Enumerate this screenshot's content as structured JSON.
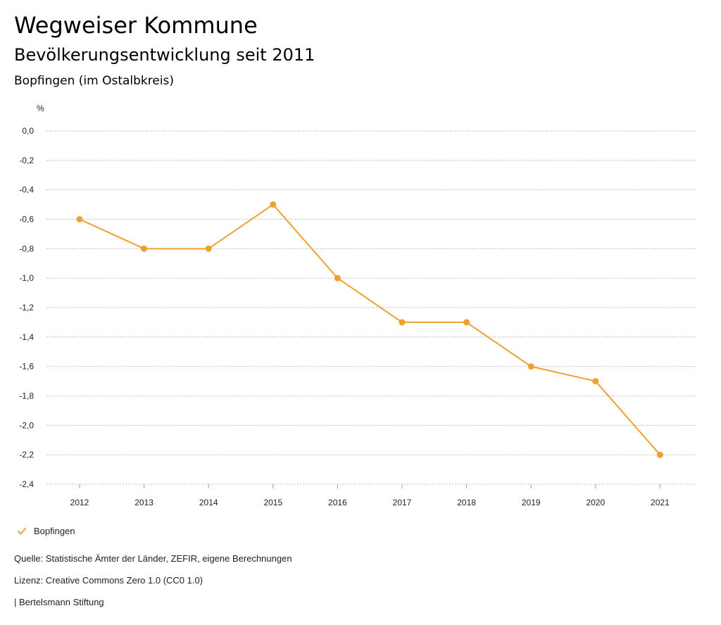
{
  "header": {
    "title": "Wegweiser Kommune",
    "subtitle": "Bevölkerungsentwicklung seit 2011",
    "region": "Bopfingen (im Ostalbkreis)"
  },
  "colors": {
    "series": "#F0A030",
    "grid": "#bbbbbb",
    "text": "#222222"
  },
  "chart_data": {
    "type": "line",
    "title": "Bevölkerungsentwicklung seit 2011",
    "ylabel": "%",
    "xlabel": "",
    "ylim": [
      -2.4,
      0.0
    ],
    "y_ticks": [
      0.0,
      -0.2,
      -0.4,
      -0.6,
      -0.8,
      -1.0,
      -1.2,
      -1.4,
      -1.6,
      -1.8,
      -2.0,
      -2.2,
      -2.4
    ],
    "y_tick_labels": [
      "0,0",
      "-0,2",
      "-0,4",
      "-0,6",
      "-0,8",
      "-1,0",
      "-1,2",
      "-1,4",
      "-1,6",
      "-1,8",
      "-2,0",
      "-2,2",
      "-2,4"
    ],
    "categories": [
      "2012",
      "2013",
      "2014",
      "2015",
      "2016",
      "2017",
      "2018",
      "2019",
      "2020",
      "2021"
    ],
    "series": [
      {
        "name": "Bopfingen",
        "values": [
          -0.6,
          -0.8,
          -0.8,
          -0.5,
          -1.0,
          -1.3,
          -1.3,
          -1.6,
          -1.7,
          -2.2
        ]
      }
    ],
    "grid": true,
    "legend_position": "bottom-left"
  },
  "legend": {
    "items": [
      {
        "label": "Bopfingen",
        "icon": "checkmark-icon"
      }
    ]
  },
  "footer": {
    "source": "Quelle: Statistische Ämter der Länder, ZEFIR, eigene Berechnungen",
    "license": "Lizenz: Creative Commons Zero 1.0 (CC0 1.0)",
    "publisher": "| Bertelsmann Stiftung"
  }
}
